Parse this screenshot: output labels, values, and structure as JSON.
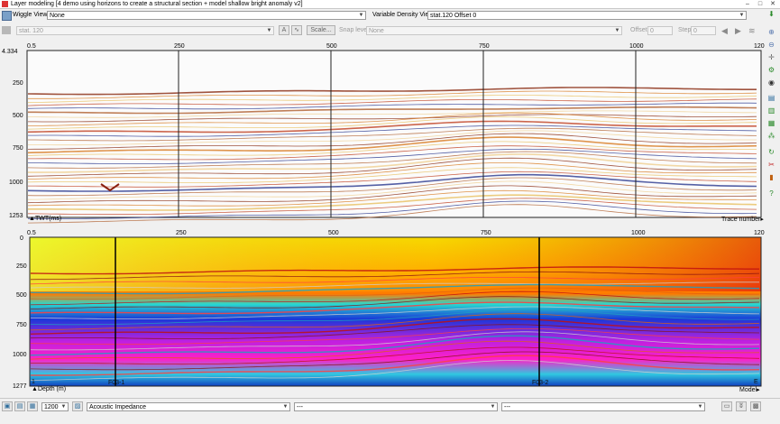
{
  "window": {
    "title": "Layer modeling [4 demo using horizons to create a structural section + model shallow bright anomaly v2]",
    "min": "–",
    "max": "□",
    "close": "✕"
  },
  "toolbar1": {
    "wiggle_label": "Wiggle View",
    "wiggle_value": "None",
    "vd_label": "Variable Density View",
    "vd_value": "stat.120 Offset 0"
  },
  "toolbar2": {
    "trace_value": "stat. 120",
    "scale_label": "Scale...",
    "snap_label": "Snap level",
    "snap_value": "None",
    "offset_label": "Offset",
    "offset_value": "0",
    "step_label": "Step",
    "step_value": "0"
  },
  "top_panel": {
    "x_ticks": [
      "0.5",
      "250",
      "500",
      "750",
      "1000",
      "120"
    ],
    "y_ticks": [
      "4.334",
      "250",
      "500",
      "750",
      "1000",
      "1253"
    ],
    "y_axis_label": "TWT(ms)",
    "x_axis_label": "Trace number"
  },
  "bottom_panel": {
    "x_ticks": [
      "0.5",
      "250",
      "500",
      "750",
      "1000",
      "120"
    ],
    "y_ticks": [
      "0",
      "250",
      "500",
      "750",
      "1000",
      "1277"
    ],
    "y_axis_label": "Depth (m)",
    "x_axis_label": "Model",
    "well_labels": [
      "F03-1",
      "F03-2"
    ],
    "corner_left": "1",
    "corner_right": "E"
  },
  "statusbar": {
    "value": "1200",
    "property": "Acoustic Impedance",
    "combo2": "---",
    "combo3": "---"
  },
  "colors": {
    "accent": "#3a6fb0",
    "seismic_dark": "#7a1e0d",
    "seismic_blue": "#1a3fa0"
  }
}
